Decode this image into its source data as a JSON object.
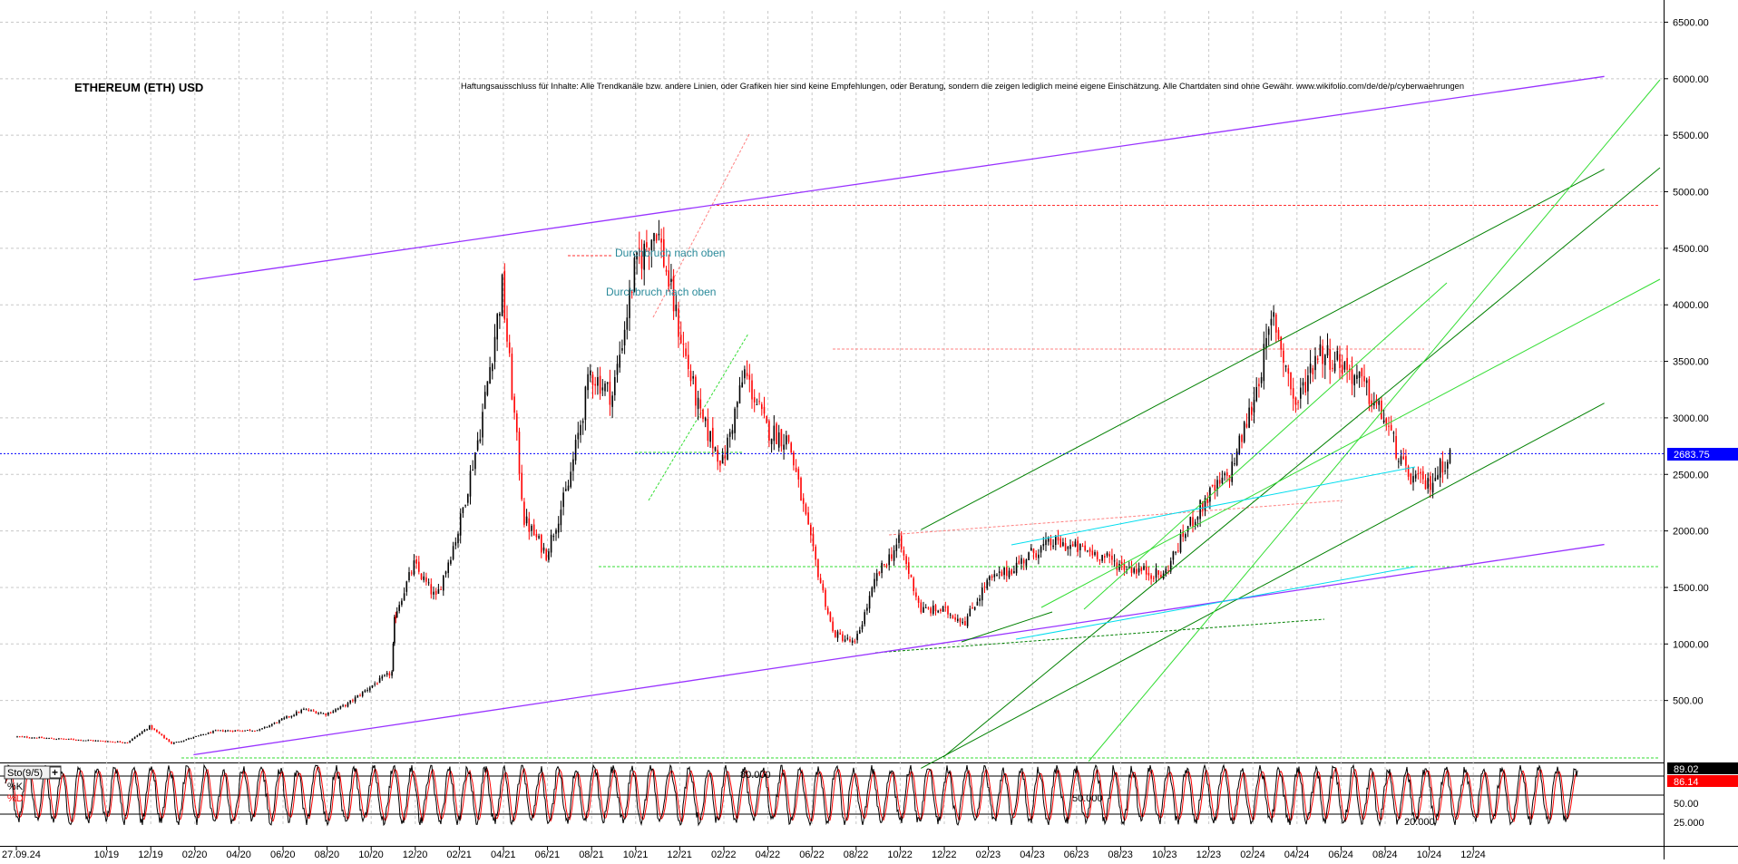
{
  "chart_title": "ETHEREUM (ETH) USD",
  "disclaimer": "Haftungsausschluss für Inhalte: Alle Trendkanäle bzw. andere Linien, oder Grafiken hier sind keine Empfehlungen, oder Beratung, sondern die zeigen lediglich meine eigene Einschätzung. Alle Chartdaten sind ohne Gewähr.  www.wikifolio.com/de/de/p/cyberwaehrungen",
  "colors": {
    "background": "#ffffff",
    "grid": "#c8c8c8",
    "bull_candle": "#000000",
    "bear_candle": "#ff0000",
    "price_marker": "#0000ff",
    "channel": "#9933ff",
    "trend_dark": "#008000",
    "trend_light": "#33dd33",
    "trend_cyan": "#00ddee",
    "resistance_red": "#ff3030",
    "annotation_text": "#2a8a9a",
    "stoch_k": "#000000",
    "stoch_d": "#ff0000",
    "k_badge": "#000000",
    "d_badge": "#ff0000"
  },
  "annotations": [
    "Durchbruch nach oben",
    "Durchbruch nach oben"
  ],
  "current_price_label": "2683.75",
  "stoch": {
    "panel_label": "Sto(9/5)",
    "toggle_icon_text": "+",
    "k_label": "%K",
    "d_label": "%D",
    "k_value": "89.02",
    "d_value": "86.14",
    "level_80": "80.000",
    "level_50": "50.000",
    "level_20": "20.000",
    "axis_labels": [
      "50.00",
      "25.000"
    ]
  },
  "chart_data": {
    "type": "candlestick",
    "title": "ETHEREUM (ETH) USD",
    "xlabel": "",
    "ylabel": "",
    "ylim": [
      0,
      6600
    ],
    "grid": true,
    "y_ticks": [
      "6500.00",
      "6000.00",
      "5500.00",
      "5000.00",
      "4500.00",
      "4000.00",
      "3500.00",
      "3000.00",
      "2500.00",
      "2000.00",
      "1500.00",
      "1000.00",
      "500.00"
    ],
    "x_ticks": [
      "27.09.24",
      "10/19",
      "12/19",
      "02/20",
      "04/20",
      "06/20",
      "08/20",
      "10/20",
      "12/20",
      "02/21",
      "04/21",
      "06/21",
      "08/21",
      "10/21",
      "12/21",
      "02/22",
      "04/22",
      "06/22",
      "08/22",
      "10/22",
      "12/22",
      "02/23",
      "04/23",
      "06/23",
      "08/23",
      "10/23",
      "12/23",
      "02/24",
      "04/24",
      "06/24",
      "08/24",
      "10/24",
      "12/24"
    ],
    "series": [
      {
        "name": "",
        "month_index_start": 0,
        "approx_price_path": [
          [
            0,
            180
          ],
          [
            2,
            160
          ],
          [
            4,
            140
          ],
          [
            5,
            130
          ],
          [
            6,
            270
          ],
          [
            7,
            120
          ],
          [
            9,
            230
          ],
          [
            11,
            240
          ],
          [
            13,
            420
          ],
          [
            14,
            380
          ],
          [
            15,
            470
          ],
          [
            16,
            620
          ],
          [
            17,
            750
          ],
          [
            17,
            1200
          ],
          [
            18,
            1700
          ],
          [
            19,
            1400
          ],
          [
            20,
            2000
          ],
          [
            21,
            2900
          ],
          [
            22,
            4150
          ],
          [
            23,
            2100
          ],
          [
            24,
            1800
          ],
          [
            25,
            2400
          ],
          [
            26,
            3400
          ],
          [
            27,
            3200
          ],
          [
            28,
            4300
          ],
          [
            29,
            4700
          ],
          [
            30,
            3800
          ],
          [
            31,
            3000
          ],
          [
            32,
            2600
          ],
          [
            33,
            3400
          ],
          [
            34,
            2900
          ],
          [
            35,
            2800
          ],
          [
            36,
            1900
          ],
          [
            37,
            1100
          ],
          [
            38,
            1000
          ],
          [
            39,
            1600
          ],
          [
            40,
            1900
          ],
          [
            41,
            1300
          ],
          [
            42,
            1300
          ],
          [
            43,
            1200
          ],
          [
            44,
            1550
          ],
          [
            45,
            1650
          ],
          [
            46,
            1800
          ],
          [
            47,
            1900
          ],
          [
            48,
            1850
          ],
          [
            49,
            1800
          ],
          [
            50,
            1700
          ],
          [
            51,
            1650
          ],
          [
            52,
            1600
          ],
          [
            53,
            2000
          ],
          [
            54,
            2300
          ],
          [
            55,
            2500
          ],
          [
            56,
            3100
          ],
          [
            57,
            3900
          ],
          [
            58,
            3100
          ],
          [
            59,
            3600
          ],
          [
            60,
            3500
          ],
          [
            61,
            3300
          ],
          [
            62,
            3000
          ],
          [
            63,
            2500
          ],
          [
            64,
            2400
          ],
          [
            65,
            2683.75
          ]
        ]
      }
    ],
    "overlays": {
      "channel_upper": [
        [
          8,
          4220
        ],
        [
          72,
          6020
        ]
      ],
      "channel_lower": [
        [
          8,
          20
        ],
        [
          72,
          1880
        ]
      ],
      "trend_dark_upper": [
        [
          41,
          2010
        ],
        [
          72,
          5200
        ]
      ],
      "trend_dark_lower": [
        [
          41,
          -100
        ],
        [
          72,
          3130
        ]
      ],
      "horizontal_resistance": 4880
    },
    "stochastic": {
      "k": 89.02,
      "d": 86.14,
      "levels": [
        80,
        50,
        20
      ]
    }
  }
}
